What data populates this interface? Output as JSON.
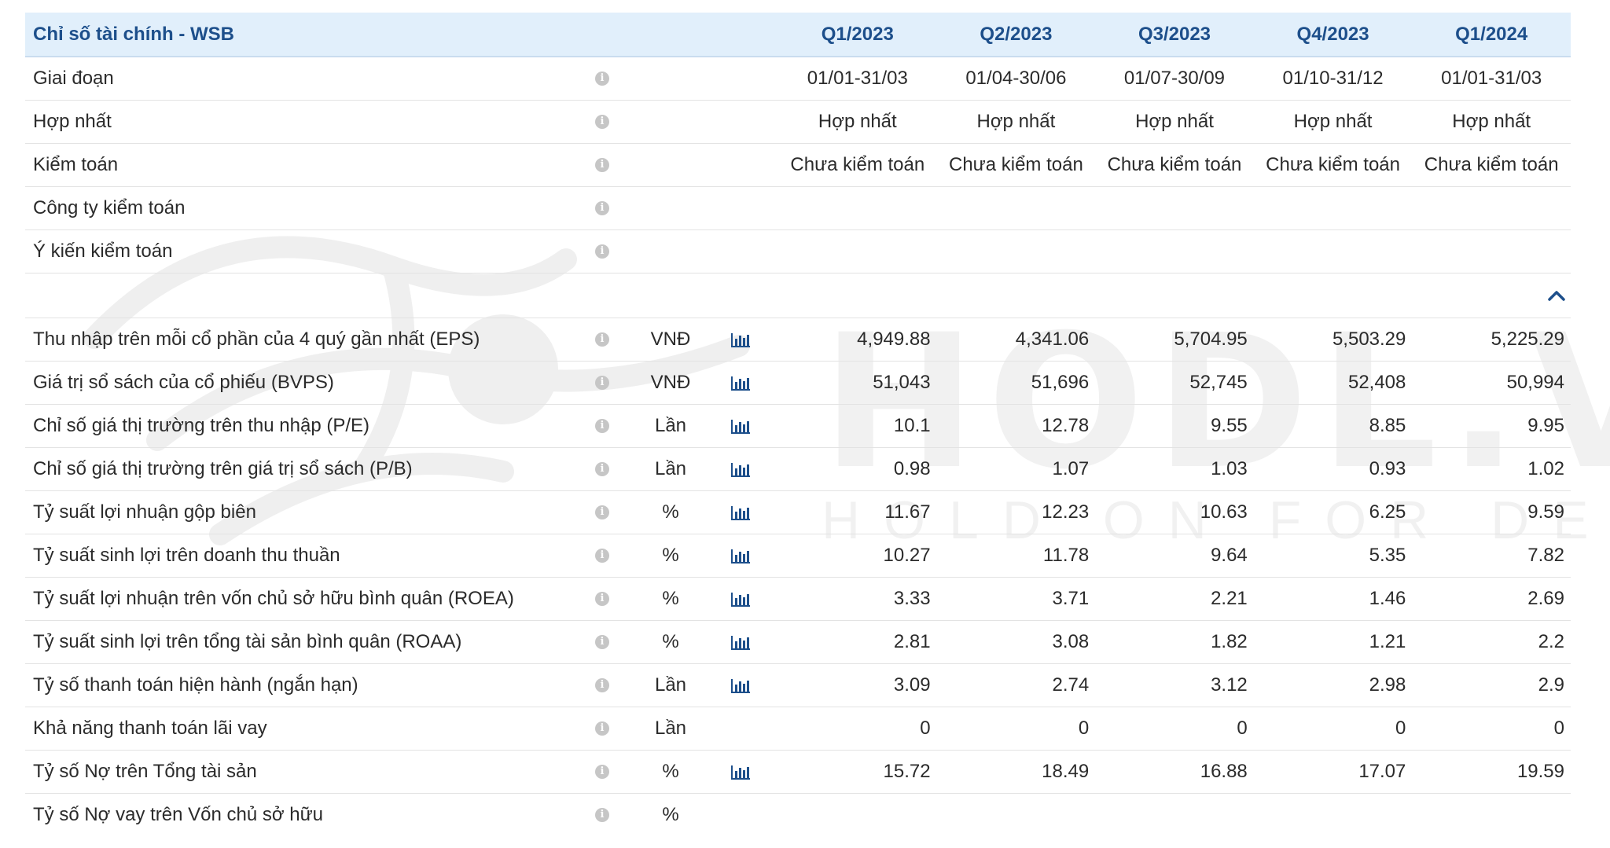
{
  "header": {
    "title": "Chỉ số tài chính - WSB",
    "periods": [
      "Q1/2023",
      "Q2/2023",
      "Q3/2023",
      "Q4/2023",
      "Q1/2024"
    ]
  },
  "info_rows": [
    {
      "label": "Giai đoạn",
      "values": [
        "01/01-31/03",
        "01/04-30/06",
        "01/07-30/09",
        "01/10-31/12",
        "01/01-31/03"
      ]
    },
    {
      "label": "Hợp nhất",
      "values": [
        "Hợp nhất",
        "Hợp nhất",
        "Hợp nhất",
        "Hợp nhất",
        "Hợp nhất"
      ]
    },
    {
      "label": "Kiểm toán",
      "values": [
        "Chưa kiểm toán",
        "Chưa kiểm toán",
        "Chưa kiểm toán",
        "Chưa kiểm toán",
        "Chưa kiểm toán"
      ]
    },
    {
      "label": "Công ty kiểm toán",
      "values": [
        "",
        "",
        "",
        "",
        ""
      ]
    },
    {
      "label": "Ý kiến kiểm toán",
      "values": [
        "",
        "",
        "",
        "",
        ""
      ]
    }
  ],
  "metric_rows": [
    {
      "label": "Thu nhập trên mỗi cổ phần của 4 quý gần nhất (EPS)",
      "unit": "VNĐ",
      "chart": true,
      "values": [
        "4,949.88",
        "4,341.06",
        "5,704.95",
        "5,503.29",
        "5,225.29"
      ]
    },
    {
      "label": "Giá trị sổ sách của cổ phiếu (BVPS)",
      "unit": "VNĐ",
      "chart": true,
      "values": [
        "51,043",
        "51,696",
        "52,745",
        "52,408",
        "50,994"
      ]
    },
    {
      "label": "Chỉ số giá thị trường trên thu nhập (P/E)",
      "unit": "Lần",
      "chart": true,
      "values": [
        "10.1",
        "12.78",
        "9.55",
        "8.85",
        "9.95"
      ]
    },
    {
      "label": "Chỉ số giá thị trường trên giá trị sổ sách (P/B)",
      "unit": "Lần",
      "chart": true,
      "values": [
        "0.98",
        "1.07",
        "1.03",
        "0.93",
        "1.02"
      ]
    },
    {
      "label": "Tỷ suất lợi nhuận gộp biên",
      "unit": "%",
      "chart": true,
      "values": [
        "11.67",
        "12.23",
        "10.63",
        "6.25",
        "9.59"
      ]
    },
    {
      "label": "Tỷ suất sinh lợi trên doanh thu thuần",
      "unit": "%",
      "chart": true,
      "values": [
        "10.27",
        "11.78",
        "9.64",
        "5.35",
        "7.82"
      ]
    },
    {
      "label": "Tỷ suất lợi nhuận trên vốn chủ sở hữu bình quân (ROEA)",
      "unit": "%",
      "chart": true,
      "values": [
        "3.33",
        "3.71",
        "2.21",
        "1.46",
        "2.69"
      ]
    },
    {
      "label": "Tỷ suất sinh lợi trên tổng tài sản bình quân (ROAA)",
      "unit": "%",
      "chart": true,
      "values": [
        "2.81",
        "3.08",
        "1.82",
        "1.21",
        "2.2"
      ]
    },
    {
      "label": "Tỷ số thanh toán hiện hành (ngắn hạn)",
      "unit": "Lần",
      "chart": true,
      "values": [
        "3.09",
        "2.74",
        "3.12",
        "2.98",
        "2.9"
      ]
    },
    {
      "label": "Khả năng thanh toán lãi vay",
      "unit": "Lần",
      "chart": false,
      "values": [
        "0",
        "0",
        "0",
        "0",
        "0"
      ]
    },
    {
      "label": "Tỷ số Nợ trên Tổng tài sản",
      "unit": "%",
      "chart": true,
      "values": [
        "15.72",
        "18.49",
        "16.88",
        "17.07",
        "19.59"
      ]
    },
    {
      "label": "Tỷ số Nợ vay trên Vốn chủ sở hữu",
      "unit": "%",
      "chart": false,
      "values": [
        "",
        "",
        "",
        "",
        ""
      ]
    }
  ],
  "watermark": {
    "brand": "HODL.VN",
    "tagline": "HOLD ON FOR DEAR LIFE"
  },
  "icons": {
    "info": "info-icon",
    "chart": "bar-chart-icon",
    "collapse": "chevron-up-icon"
  },
  "colors": {
    "header_bg": "#e1effb",
    "header_text": "#1d4f8b",
    "chart_icon": "#1d4f8b",
    "info_icon": "#c6c6c6"
  }
}
